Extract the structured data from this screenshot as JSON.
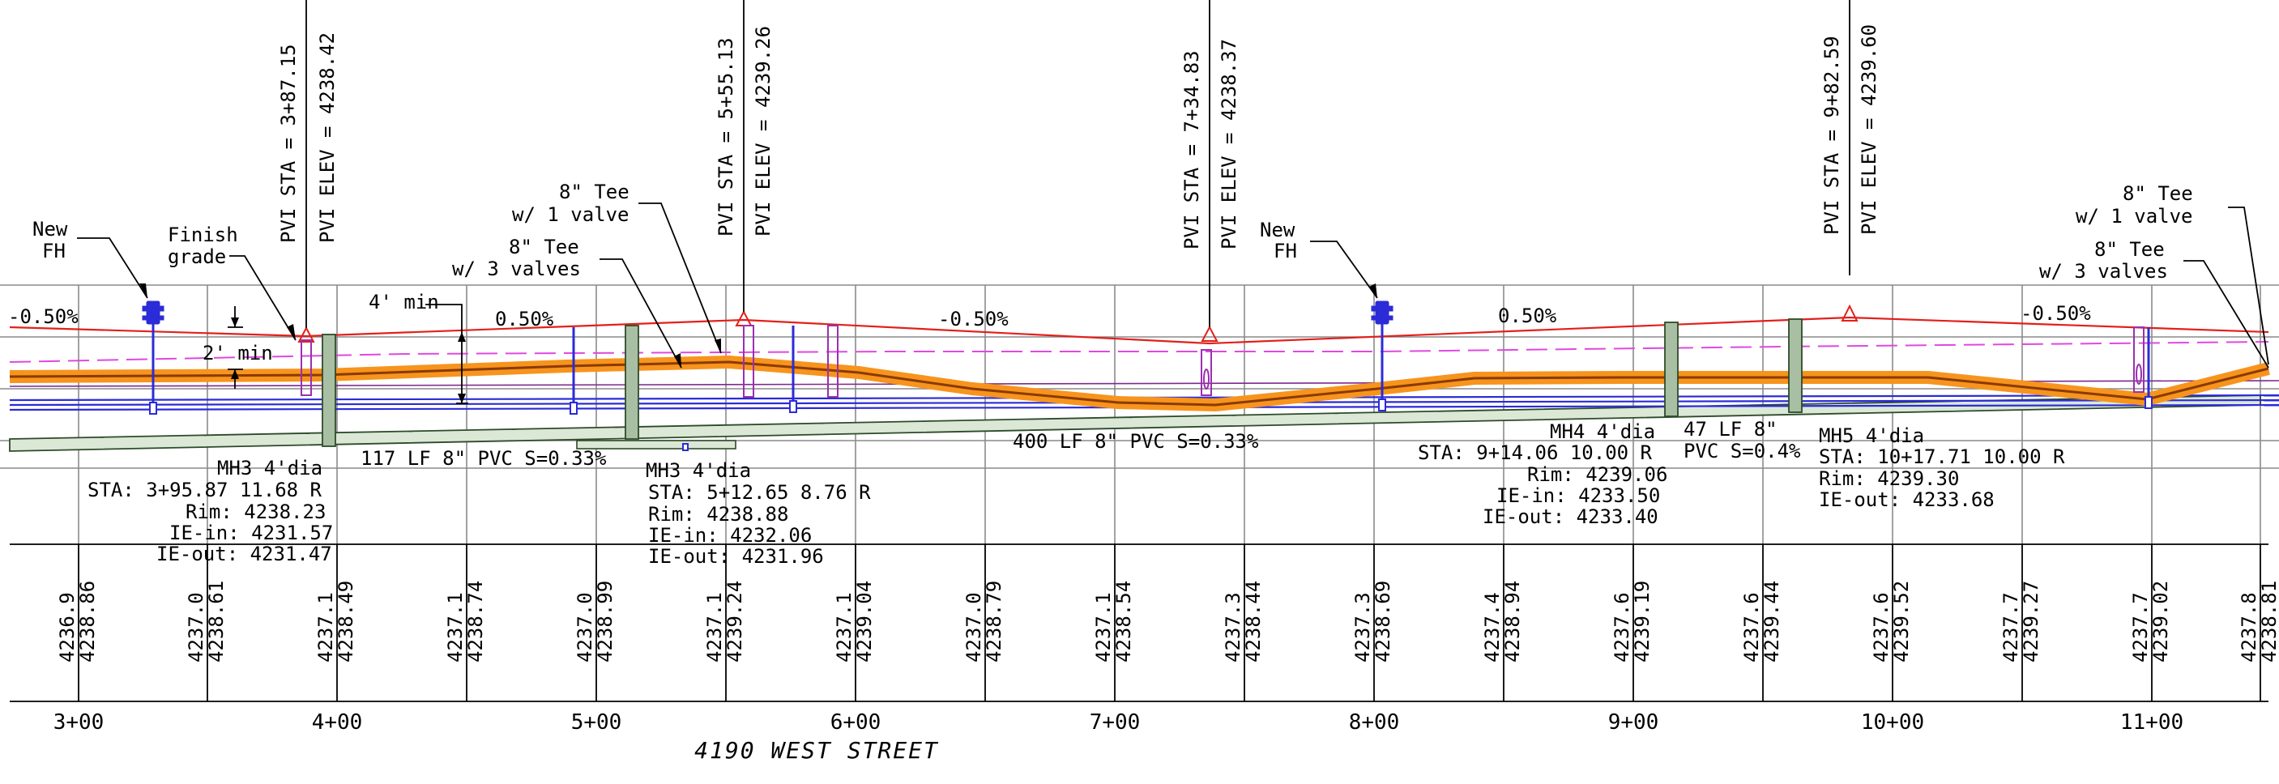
{
  "street_title": "4190 WEST STREET",
  "colors": {
    "grid": "#8a8a8a",
    "finish_grade": "#e3201b",
    "existing_grade": "#e048e0",
    "gas_main": "#f7941d",
    "water_main": "#2b2bd8",
    "sewer_pipe": "#dbe8d6",
    "manhole": "#a9bfa3",
    "valve": "#9b2fb0"
  },
  "stations": [
    "3+00",
    "4+00",
    "5+00",
    "6+00",
    "7+00",
    "8+00",
    "9+00",
    "10+00",
    "11+00"
  ],
  "profile_columns": [
    {
      "existing": "4236.9",
      "proposed": "4238.86"
    },
    {
      "existing": "4237.0",
      "proposed": "4238.61"
    },
    {
      "existing": "4237.1",
      "proposed": "4238.49"
    },
    {
      "existing": "4237.1",
      "proposed": "4238.74"
    },
    {
      "existing": "4237.0",
      "proposed": "4238.99"
    },
    {
      "existing": "4237.1",
      "proposed": "4239.24"
    },
    {
      "existing": "4237.1",
      "proposed": "4239.04"
    },
    {
      "existing": "4237.0",
      "proposed": "4238.79"
    },
    {
      "existing": "4237.1",
      "proposed": "4238.54"
    },
    {
      "existing": "4237.3",
      "proposed": "4238.44"
    },
    {
      "existing": "4237.3",
      "proposed": "4238.69"
    },
    {
      "existing": "4237.4",
      "proposed": "4238.94"
    },
    {
      "existing": "4237.6",
      "proposed": "4239.19"
    },
    {
      "existing": "4237.6",
      "proposed": "4239.44"
    },
    {
      "existing": "4237.6",
      "proposed": "4239.52"
    },
    {
      "existing": "4237.7",
      "proposed": "4239.27"
    },
    {
      "existing": "4237.7",
      "proposed": "4239.02"
    },
    {
      "existing": "4237.8",
      "proposed": "4238.81"
    }
  ],
  "pvis": [
    {
      "sta": "PVI STA  =  3+87.15",
      "elev": "PVI ELEV  =  4238.42"
    },
    {
      "sta": "PVI STA  =  5+55.13",
      "elev": "PVI ELEV  =  4239.26"
    },
    {
      "sta": "PVI STA  =  7+34.83",
      "elev": "PVI ELEV  =  4238.37"
    },
    {
      "sta": "PVI STA  =  9+82.59",
      "elev": "PVI ELEV  =  4239.60"
    }
  ],
  "grades": [
    "-0.50%",
    "0.50%",
    "-0.50%",
    "0.50%",
    "-0.50%"
  ],
  "callouts": {
    "new_fh_1": [
      "New",
      "FH"
    ],
    "finish_grade": [
      "Finish",
      "grade"
    ],
    "four_min": "4' min",
    "two_min": "2' min",
    "tee_one_valve_1": [
      "8\" Tee",
      "w/  1  valve"
    ],
    "tee_three_valves_1": [
      "8\" Tee",
      "w/  3  valves"
    ],
    "new_fh_2": [
      "New",
      "FH"
    ],
    "tee_one_valve_2": [
      "8\" Tee",
      "w/  1  valve"
    ],
    "tee_three_valves_2": [
      "8\" Tee",
      "w/  3  valves"
    ]
  },
  "pipe_labels": {
    "run1": "117  LF  8\"  PVC  S=0.33%",
    "run2": "400  LF  8\"  PVC  S=0.33%",
    "run3_a": "47  LF  8\"",
    "run3_b": "PVC  S=0.4%"
  },
  "manholes": [
    {
      "title": "MH3  4'dia",
      "sta": "STA:  3+95.87  11.68  R",
      "rim": "Rim:  4238.23",
      "ie_in": "IE-in:  4231.57",
      "ie_out": "IE-out:  4231.47"
    },
    {
      "title": "MH3  4'dia",
      "sta": "STA:  5+12.65  8.76  R",
      "rim": "Rim:  4238.88",
      "ie_in": "IE-in:  4232.06",
      "ie_out": "IE-out:  4231.96"
    },
    {
      "title": "MH4  4'dia",
      "sta": "STA:  9+14.06  10.00  R",
      "rim": "Rim:  4239.06",
      "ie_in": "IE-in:  4233.50",
      "ie_out": "IE-out:  4233.40"
    },
    {
      "title": "MH5  4'dia",
      "sta": "STA:  10+17.71  10.00  R",
      "rim": "Rim:  4239.30",
      "ie_out": "IE-out:  4233.68"
    }
  ]
}
